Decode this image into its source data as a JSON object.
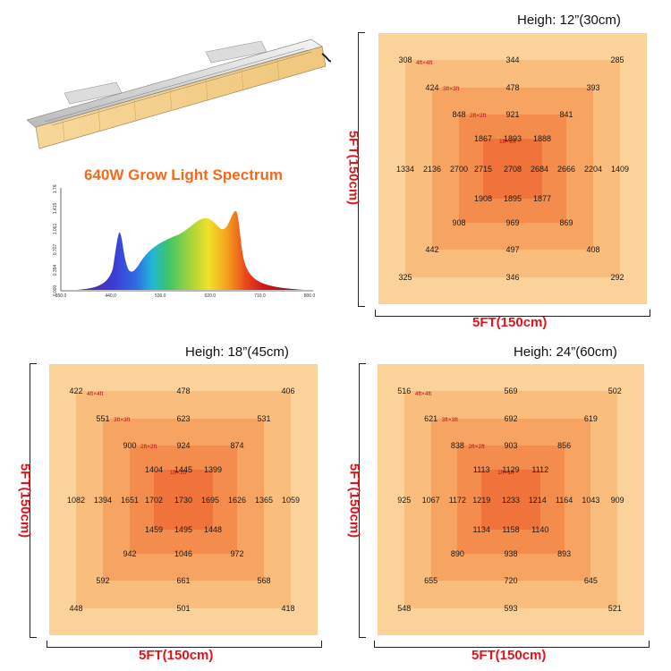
{
  "spectrum": {
    "title": "640W  Grow Light Spectrum",
    "y_ticks": [
      "0.000",
      "0.354",
      "0.707",
      "1.061",
      "1.415",
      "1.768"
    ],
    "x_ticks": [
      "350.0",
      "440.0",
      "530.0",
      "620.0",
      "710.0",
      "800.0"
    ]
  },
  "colors": {
    "heading_red": "#e0141b",
    "title_orange": "#f26a1b"
  },
  "zone_labels": [
    "4ft×4ft",
    "3ft×3ft",
    "2ft×2ft",
    "1ft×1ft"
  ],
  "panels": [
    {
      "id": "h12",
      "height_label": "Heigh: 12”(30cm)",
      "width_label": "5FT(150cm)",
      "side_label": "5FT(150cm)",
      "rows": [
        [
          "308",
          "344",
          "285"
        ],
        [
          "424",
          "478",
          "393"
        ],
        [
          "848",
          "921",
          "841"
        ],
        [
          "1867",
          "1893",
          "1888"
        ],
        [
          "1334",
          "2136",
          "2700",
          "2715",
          "2708",
          "2684",
          "2666",
          "2204",
          "1409"
        ],
        [
          "1908",
          "1895",
          "1877"
        ],
        [
          "908",
          "969",
          "869"
        ],
        [
          "442",
          "497",
          "408"
        ],
        [
          "325",
          "346",
          "292"
        ]
      ]
    },
    {
      "id": "h18",
      "height_label": "Heigh: 18”(45cm)",
      "width_label": "5FT(150cm)",
      "side_label": "5FT(150cm)",
      "rows": [
        [
          "422",
          "478",
          "406"
        ],
        [
          "551",
          "623",
          "531"
        ],
        [
          "900",
          "924",
          "874"
        ],
        [
          "1404",
          "1445",
          "1399"
        ],
        [
          "1082",
          "1394",
          "1651",
          "1702",
          "1730",
          "1695",
          "1626",
          "1365",
          "1059"
        ],
        [
          "1459",
          "1495",
          "1448"
        ],
        [
          "942",
          "1046",
          "972"
        ],
        [
          "592",
          "661",
          "568"
        ],
        [
          "448",
          "501",
          "418"
        ]
      ]
    },
    {
      "id": "h24",
      "height_label": "Heigh: 24”(60cm)",
      "width_label": "5FT(150cm)",
      "side_label": "5FT(150cm)",
      "rows": [
        [
          "516",
          "569",
          "502"
        ],
        [
          "621",
          "692",
          "619"
        ],
        [
          "838",
          "903",
          "856"
        ],
        [
          "1113",
          "1129",
          "1112"
        ],
        [
          "925",
          "1067",
          "1172",
          "1219",
          "1233",
          "1214",
          "1164",
          "1043",
          "909"
        ],
        [
          "1134",
          "1158",
          "1140"
        ],
        [
          "890",
          "938",
          "893"
        ],
        [
          "655",
          "720",
          "645"
        ],
        [
          "548",
          "593",
          "521"
        ]
      ]
    }
  ]
}
